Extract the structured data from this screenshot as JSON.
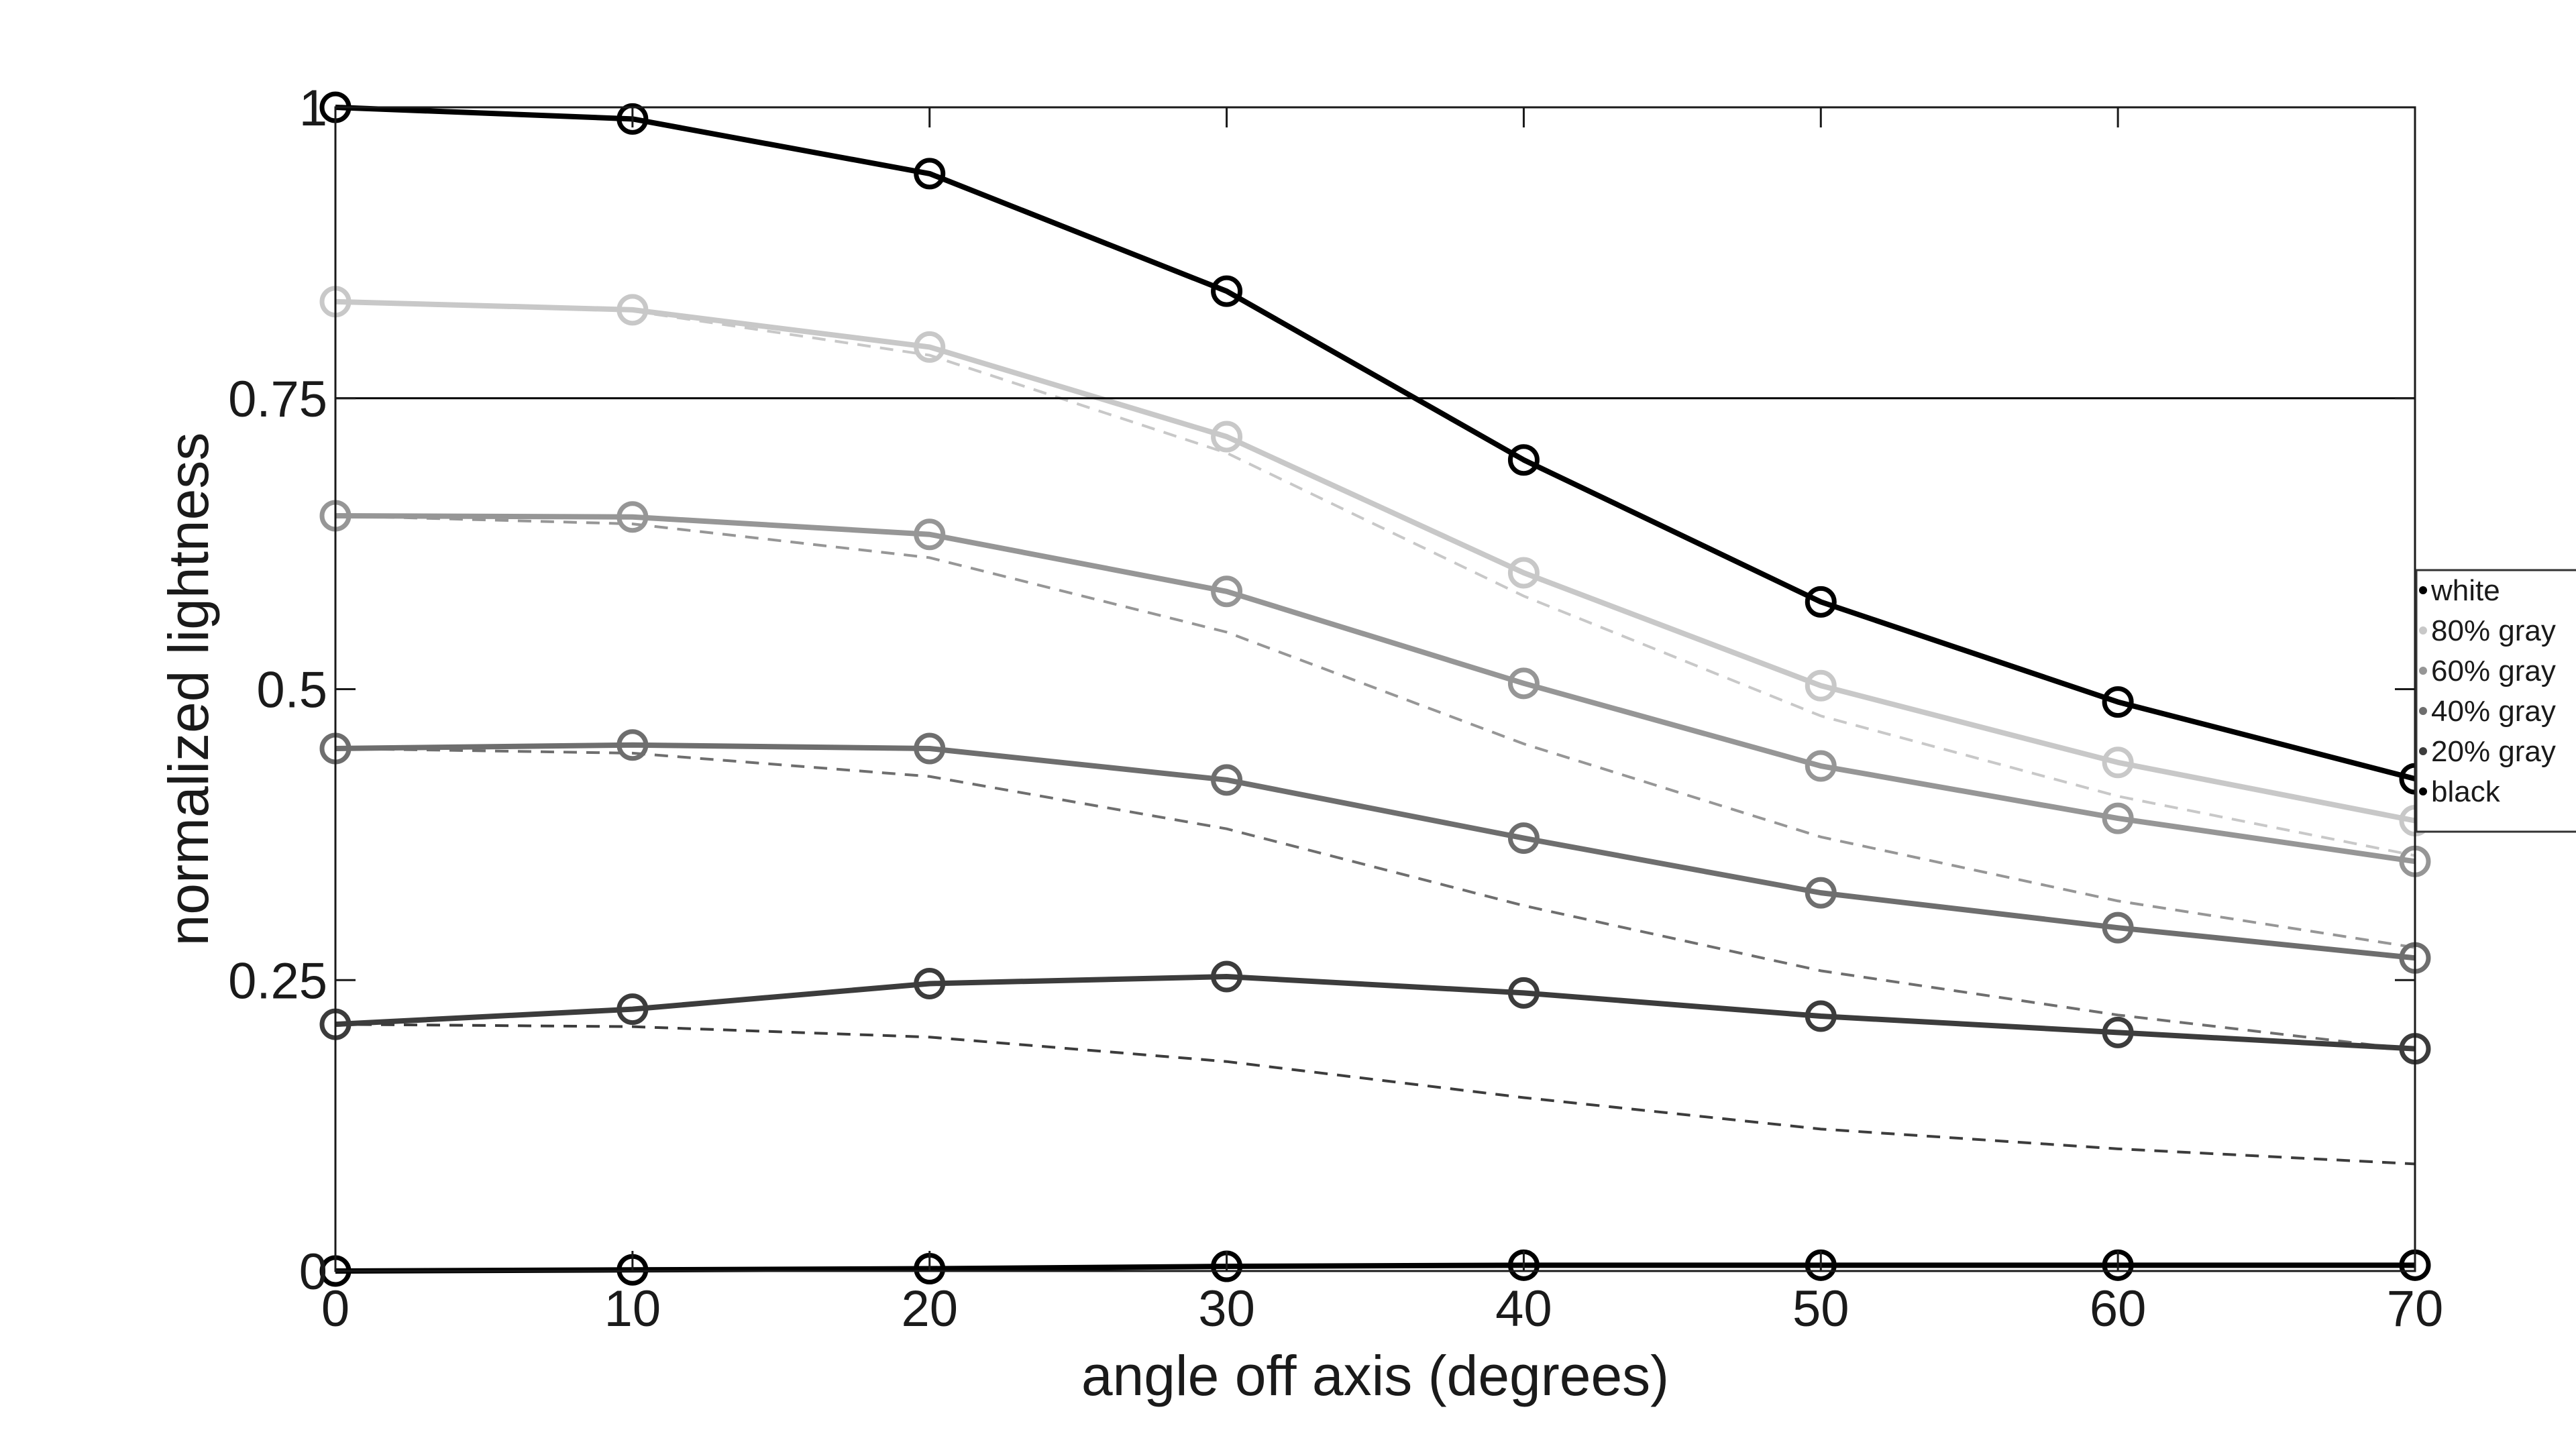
{
  "chart_data": {
    "type": "line",
    "title": "",
    "xlabel": "angle off axis (degrees)",
    "ylabel": "normalized lightness",
    "xlim": [
      0,
      70
    ],
    "ylim": [
      0,
      1
    ],
    "x": [
      0,
      10,
      20,
      30,
      40,
      50,
      60,
      70
    ],
    "x_ticks": [
      "0",
      "10",
      "20",
      "30",
      "40",
      "50",
      "60",
      "70"
    ],
    "y_ticks": [
      {
        "value": 0,
        "label": "0"
      },
      {
        "value": 0.25,
        "label": "0.25"
      },
      {
        "value": 0.5,
        "label": "0.5"
      },
      {
        "value": 0.75,
        "label": "0.75"
      },
      {
        "value": 1,
        "label": "1"
      }
    ],
    "reference_line": 0.75,
    "grid": false,
    "legend_position": "right",
    "series": [
      {
        "name": "white",
        "color": "#000000",
        "values": [
          1.0,
          0.99,
          0.943,
          0.842,
          0.697,
          0.575,
          0.489,
          0.423
        ]
      },
      {
        "name": "80% gray",
        "color": "#c8c8c8",
        "values": [
          0.833,
          0.826,
          0.794,
          0.717,
          0.6,
          0.503,
          0.437,
          0.387
        ]
      },
      {
        "name": "60% gray",
        "color": "#969696",
        "values": [
          0.649,
          0.648,
          0.633,
          0.584,
          0.505,
          0.434,
          0.389,
          0.352
        ]
      },
      {
        "name": "40% gray",
        "color": "#6e6e6e",
        "values": [
          0.449,
          0.452,
          0.449,
          0.422,
          0.372,
          0.325,
          0.295,
          0.269
        ]
      },
      {
        "name": "20% gray",
        "color": "#3c3c3c",
        "values": [
          0.212,
          0.225,
          0.247,
          0.253,
          0.239,
          0.219,
          0.205,
          0.191
        ]
      },
      {
        "name": "black",
        "color": "#000000",
        "values": [
          0.0,
          0.001,
          0.002,
          0.004,
          0.005,
          0.005,
          0.005,
          0.005
        ]
      }
    ],
    "dashed_series": [
      {
        "color": "#c8c8c8",
        "values": [
          0.833,
          0.825,
          0.787,
          0.703,
          0.58,
          0.477,
          0.408,
          0.357
        ]
      },
      {
        "color": "#969696",
        "values": [
          0.649,
          0.642,
          0.613,
          0.549,
          0.453,
          0.373,
          0.318,
          0.278
        ]
      },
      {
        "color": "#6e6e6e",
        "values": [
          0.449,
          0.445,
          0.425,
          0.38,
          0.314,
          0.258,
          0.22,
          0.19
        ]
      },
      {
        "color": "#3c3c3c",
        "values": [
          0.212,
          0.21,
          0.201,
          0.18,
          0.149,
          0.122,
          0.105,
          0.092
        ]
      }
    ]
  }
}
